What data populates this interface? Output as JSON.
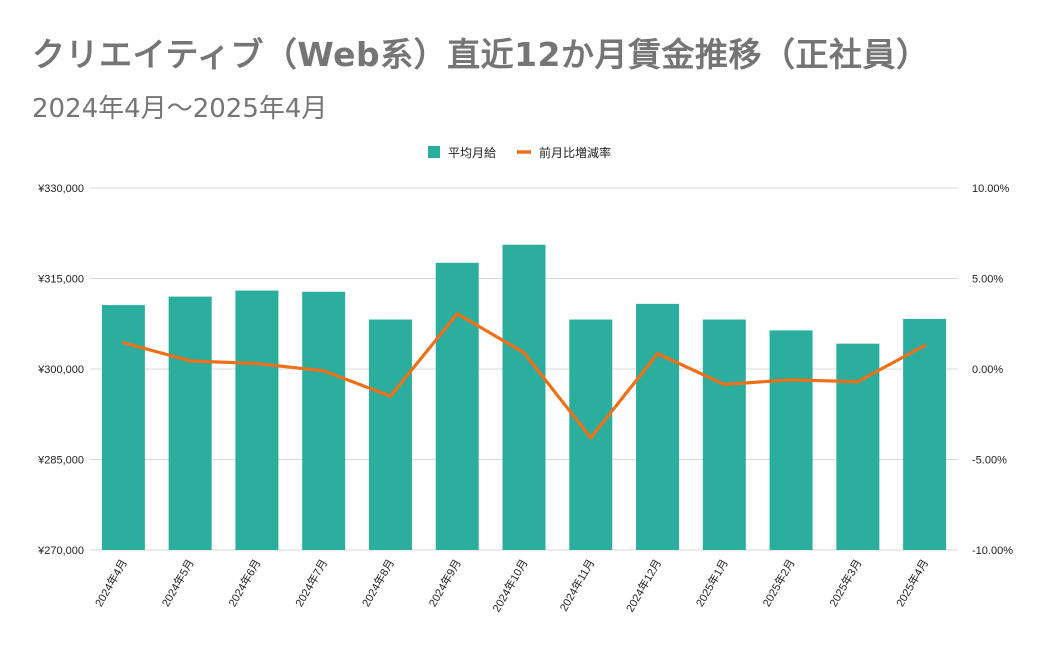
{
  "title": "クリエイティブ（Web系）直近12か月賃金推移（正社員）",
  "subtitle": "2024年4月～2025年4月",
  "colors": {
    "bar": "#2bae9e",
    "line": "#ef7019",
    "grid": "#d9d9d9",
    "text": "#222222"
  },
  "chart_data": {
    "type": "bar",
    "categories": [
      "2024年4月",
      "2024年5月",
      "2024年6月",
      "2024年7月",
      "2024年8月",
      "2024年9月",
      "2024年10月",
      "2024年11月",
      "2024年12月",
      "2025年1月",
      "2025年2月",
      "2025年3月",
      "2025年4月"
    ],
    "series": [
      {
        "name": "平均月給",
        "type": "bar",
        "axis": "left",
        "values": [
          310600,
          312000,
          313000,
          312800,
          308200,
          317600,
          320600,
          308200,
          310800,
          308200,
          306400,
          304200,
          308300
        ]
      },
      {
        "name": "前月比増減率",
        "type": "line",
        "axis": "right",
        "values": [
          1.45,
          0.45,
          0.3,
          -0.1,
          -1.5,
          3.05,
          0.9,
          -3.8,
          0.85,
          -0.85,
          -0.6,
          -0.7,
          1.3
        ]
      }
    ],
    "yleft": {
      "ylim": [
        270000,
        330000
      ],
      "ticks": [
        "¥270,000",
        "¥285,000",
        "¥300,000",
        "¥315,000",
        "¥330,000"
      ]
    },
    "yright": {
      "ylim": [
        -10,
        10
      ],
      "ticks": [
        "-10.00%",
        "-5.00%",
        "0.00%",
        "5.00%",
        "10.00%"
      ]
    },
    "legend_position": "top",
    "grid": true
  }
}
